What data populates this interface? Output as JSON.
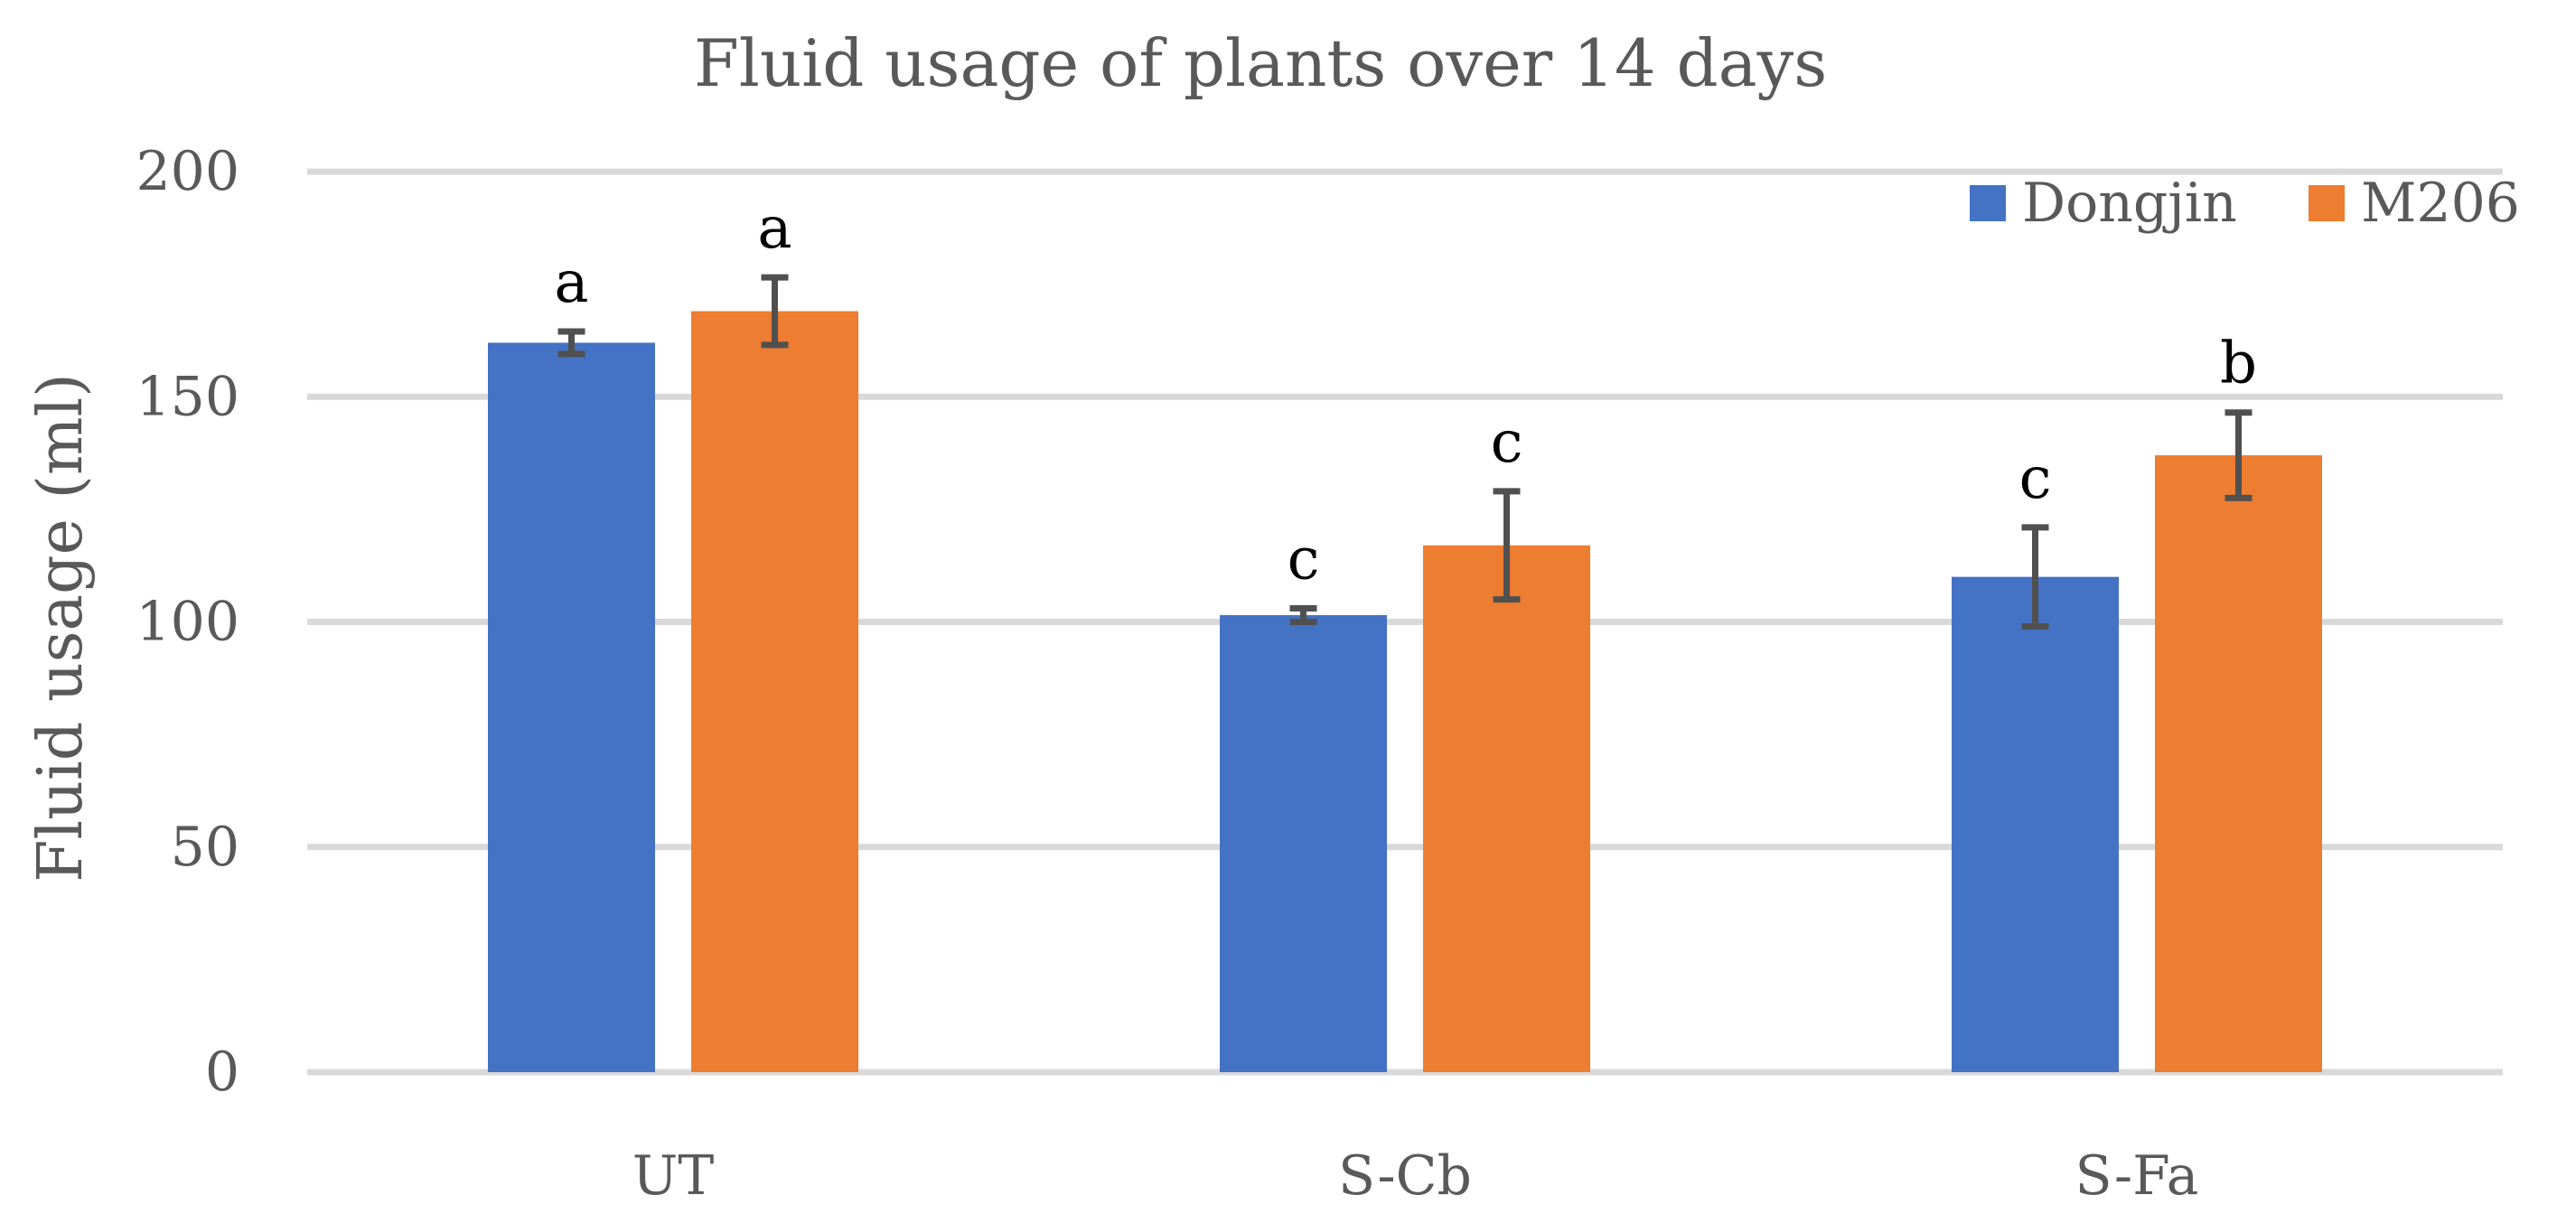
{
  "chart_data": {
    "type": "bar",
    "title": "Fluid usage of plants over 14 days",
    "xlabel": "",
    "ylabel": "Fluid usage (ml)",
    "ylim": [
      0,
      200
    ],
    "yticks": [
      0,
      50,
      100,
      150,
      200
    ],
    "grid": true,
    "legend_position": "top-right",
    "categories": [
      "UT",
      "S-Cb",
      "S-Fa"
    ],
    "series": [
      {
        "name": "Dongjin",
        "color": "#4472c4",
        "values": [
          162,
          101.5,
          110
        ],
        "errors": [
          2.5,
          1.5,
          11
        ],
        "significance": [
          "a",
          "c",
          "c"
        ]
      },
      {
        "name": "M206",
        "color": "#ed7d31",
        "values": [
          169,
          117,
          137
        ],
        "errors": [
          7.5,
          12,
          9.5
        ],
        "significance": [
          "a",
          "c",
          "b"
        ]
      }
    ]
  }
}
